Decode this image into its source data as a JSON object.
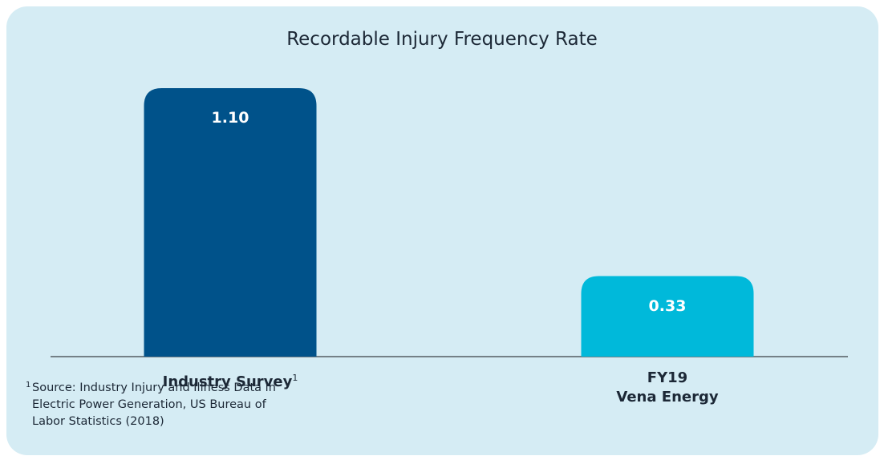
{
  "chart_data": {
    "type": "bar",
    "title": "Recordable Injury Frequency Rate",
    "categories": [
      "Industry Survey",
      "FY19\nVena Energy"
    ],
    "values": [
      1.1,
      0.33
    ],
    "value_labels": [
      "1.10",
      "0.33"
    ],
    "colors": [
      "#00528a",
      "#00b9da"
    ],
    "footnote": {
      "marker": "1",
      "text": "Source: Industry Injury and Illness Data in Electric Power Generation, US Bureau of Labor Statistics (2018)"
    }
  }
}
